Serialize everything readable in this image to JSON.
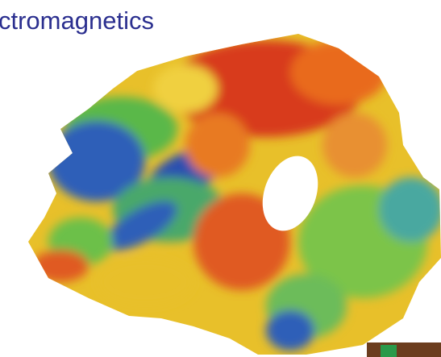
{
  "title": "ctromagnetics"
}
